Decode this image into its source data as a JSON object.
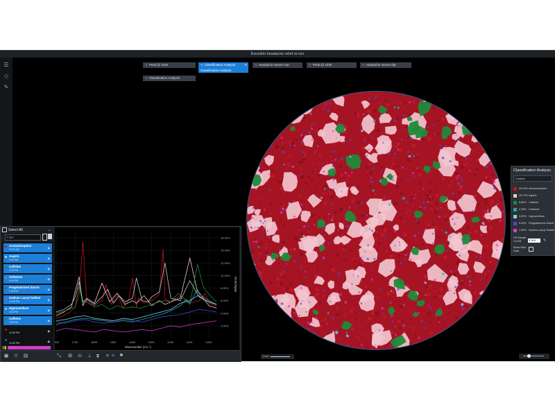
{
  "window": {
    "title": "Excedrin headache relief re-run"
  },
  "chips": [
    {
      "label": "Peak @ 1030"
    },
    {
      "label": "Classification Analysis"
    },
    {
      "label": "Headache severe Asp"
    },
    {
      "label": "Peak @ 1030"
    },
    {
      "label": "Headache severe Ibp"
    },
    {
      "label": "Classification Analysis"
    }
  ],
  "active_chip_sub": "Classification Analysis",
  "classification": {
    "title": "Classification Analysis",
    "method": "Custom",
    "rows": [
      {
        "pct": "44.04%",
        "name": "Acetaminophen",
        "color": "#c0141f"
      },
      {
        "pct": "39.72%",
        "name": "Aspirin",
        "color": "#f2c6cf"
      },
      {
        "pct": "8.69%",
        "name": "Caffeine",
        "color": "#1e8a3a"
      },
      {
        "pct": "2.33%",
        "name": "Cellulose",
        "color": "#2aa6a6"
      },
      {
        "pct": "0.59%",
        "name": "Hypromellose",
        "color": "#7fd0f0"
      },
      {
        "pct": "0.59%",
        "name": "Pregelatinized Starch",
        "color": "#4a4acb"
      },
      {
        "pct": "1.53%",
        "name": "Sodium Lauryl Sulfate",
        "color": "#d23cc8"
      }
    ],
    "hit_cutoff_label": "HR Sample Cut Off",
    "hit_cutoff_value": "0.300",
    "show_raw_label": "Show Raw Data"
  },
  "spectra_panel": {
    "select_all": "Select All",
    "filter_placeholder": "Filter",
    "items": [
      {
        "name": "Acetaminophen",
        "time": "12:01 AM",
        "color": "#c0141f",
        "selected": true
      },
      {
        "name": "Aspirin",
        "time": "2:42 PM",
        "color": "#f2c6cf",
        "selected": true
      },
      {
        "name": "Caffeine",
        "time": "2:40 PM",
        "color": "#1e8a3a",
        "selected": true
      },
      {
        "name": "Cellulose",
        "time": "2:40 PM",
        "color": "#2aa6a6",
        "selected": true
      },
      {
        "name": "Pregelatinized Starch",
        "time": "2:40 PM",
        "color": "#4a4acb",
        "selected": true
      },
      {
        "name": "Sodium Lauryl Sulfate",
        "time": "12:39 PM",
        "color": "#d23cc8",
        "selected": true
      },
      {
        "name": "Hypromellose",
        "time": "2:40 PM",
        "color": "#7fd0f0",
        "selected": true
      },
      {
        "name": "Caffeine",
        "time": "2:55 PM",
        "color": "#1e8a3a",
        "selected": true
      },
      {
        "name": "",
        "time": "12:45 PM",
        "color": "#c0141f",
        "selected": false
      },
      {
        "name": "",
        "time": "12:45 PM",
        "color": "#3b5bd6",
        "selected": false
      }
    ]
  },
  "chart_data": {
    "type": "line",
    "xlabel": "Wavenumber (cm⁻¹)",
    "ylabel": "Reflectance",
    "x_ticks": [
      "1800",
      "1700",
      "1600",
      "1500",
      "1400",
      "1300",
      "1200",
      "1100",
      "1000"
    ],
    "y_ticks": [
      "16.00%",
      "14.00%",
      "12.00%",
      "10.00%",
      "8.00%",
      "6.00%",
      "4.00%",
      "2.00%"
    ],
    "xlim": [
      1800,
      950
    ],
    "ylim": [
      0,
      17
    ],
    "series": [
      {
        "color": "#c0141f",
        "x": [
          1800,
          1760,
          1720,
          1700,
          1680,
          1660,
          1640,
          1600,
          1560,
          1540,
          1510,
          1480,
          1450,
          1420,
          1400,
          1380,
          1370,
          1340,
          1300,
          1260,
          1240,
          1230,
          1200,
          1150,
          1100,
          1050,
          1020,
          1000,
          960
        ],
        "y": [
          3.2,
          3.6,
          4.4,
          5.0,
          6.8,
          15.4,
          5.8,
          5.2,
          6.0,
          8.6,
          5.4,
          7.0,
          4.8,
          6.2,
          9.6,
          5.0,
          6.4,
          5.6,
          6.0,
          7.0,
          14.2,
          6.2,
          5.8,
          6.8,
          5.6,
          6.0,
          7.2,
          5.6,
          5.2
        ]
      },
      {
        "color": "#f2c6cf",
        "x": [
          1800,
          1760,
          1720,
          1700,
          1680,
          1660,
          1640,
          1600,
          1560,
          1520,
          1480,
          1440,
          1400,
          1380,
          1340,
          1300,
          1260,
          1230,
          1200,
          1150,
          1100,
          1060,
          1040,
          1020,
          1000,
          960
        ],
        "y": [
          3.6,
          4.2,
          5.0,
          7.6,
          9.8,
          5.2,
          6.4,
          5.6,
          8.8,
          5.8,
          7.2,
          5.4,
          6.0,
          5.6,
          6.8,
          5.2,
          6.0,
          5.4,
          5.8,
          6.4,
          12.8,
          7.4,
          6.8,
          6.0,
          5.2,
          4.8
        ]
      },
      {
        "color": "#1e8a3a",
        "x": [
          1800,
          1750,
          1700,
          1680,
          1660,
          1640,
          1600,
          1560,
          1520,
          1480,
          1440,
          1400,
          1360,
          1320,
          1280,
          1240,
          1200,
          1160,
          1120,
          1100,
          1060,
          1030,
          1000,
          960
        ],
        "y": [
          4.0,
          4.4,
          5.0,
          8.2,
          5.6,
          5.8,
          5.0,
          5.4,
          4.6,
          5.2,
          4.8,
          5.0,
          4.8,
          5.2,
          5.6,
          6.0,
          5.8,
          7.2,
          6.0,
          5.4,
          11.8,
          8.2,
          7.0,
          5.8
        ]
      },
      {
        "color": "#2aa6a6",
        "x": [
          1800,
          1750,
          1700,
          1650,
          1600,
          1550,
          1500,
          1450,
          1400,
          1350,
          1300,
          1250,
          1200,
          1150,
          1120,
          1100,
          1060,
          1040,
          1000,
          960
        ],
        "y": [
          2.2,
          2.6,
          3.0,
          3.2,
          3.0,
          2.8,
          2.6,
          2.8,
          2.6,
          3.0,
          3.4,
          3.8,
          4.4,
          5.2,
          6.2,
          5.6,
          7.8,
          6.8,
          6.0,
          5.4
        ]
      },
      {
        "color": "#7fd0f0",
        "x": [
          1800,
          1750,
          1700,
          1650,
          1600,
          1550,
          1500,
          1450,
          1400,
          1350,
          1300,
          1250,
          1200,
          1150,
          1100,
          1060,
          1040,
          1000,
          960
        ],
        "y": [
          2.8,
          3.0,
          3.4,
          3.6,
          3.2,
          3.0,
          2.8,
          3.2,
          3.0,
          3.4,
          3.8,
          4.2,
          4.6,
          5.6,
          6.0,
          6.8,
          6.4,
          5.8,
          5.4
        ]
      },
      {
        "color": "#4a4acb",
        "x": [
          1800,
          1750,
          1700,
          1650,
          1600,
          1550,
          1500,
          1450,
          1400,
          1350,
          1300,
          1250,
          1200,
          1150,
          1100,
          1050,
          1000,
          960
        ],
        "y": [
          2.6,
          2.4,
          2.8,
          3.0,
          2.6,
          2.4,
          2.6,
          3.0,
          2.8,
          2.6,
          3.0,
          3.4,
          3.6,
          3.8,
          4.2,
          4.6,
          4.4,
          4.2
        ]
      },
      {
        "color": "#d23cc8",
        "x": [
          1800,
          1750,
          1700,
          1650,
          1600,
          1550,
          1500,
          1450,
          1400,
          1350,
          1300,
          1250,
          1200,
          1150,
          1100,
          1050,
          1000,
          960
        ],
        "y": [
          1.2,
          1.6,
          1.4,
          1.2,
          1.0,
          1.4,
          1.2,
          1.0,
          1.2,
          1.4,
          1.2,
          1.6,
          2.0,
          1.8,
          2.2,
          2.4,
          2.6,
          2.8
        ]
      },
      {
        "color": "#bfc5cc",
        "x": [
          1800,
          1760,
          1720,
          1700,
          1680,
          1660,
          1640,
          1600,
          1560,
          1530,
          1500,
          1470,
          1440,
          1400,
          1380,
          1350,
          1320,
          1300,
          1260,
          1230,
          1200,
          1150,
          1100,
          1060,
          1030,
          1000,
          960
        ],
        "y": [
          4.2,
          4.6,
          5.4,
          6.6,
          9.0,
          5.8,
          6.2,
          5.4,
          6.6,
          7.8,
          5.6,
          6.8,
          5.8,
          6.4,
          9.6,
          6.0,
          5.8,
          6.6,
          7.4,
          12.0,
          6.4,
          6.0,
          9.2,
          7.0,
          6.2,
          5.8,
          5.4
        ]
      }
    ]
  },
  "scale_bar": {
    "label": "1 mm"
  },
  "toolbar": {
    "tools": [
      "measure-tool",
      "roi-tool",
      "peak-tool",
      "baseline-tool",
      "normalize-tool",
      "spectrum-tool",
      "cursor-tool",
      "flag-tool"
    ]
  },
  "left_tools": [
    "menu-icon",
    "drop-icon",
    "pencil-icon"
  ]
}
